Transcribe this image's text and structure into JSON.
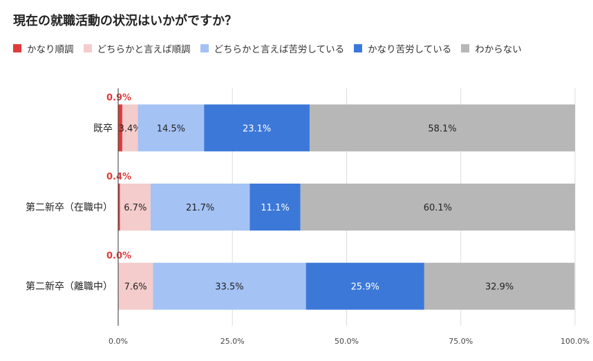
{
  "chart_data": {
    "type": "bar",
    "orientation": "horizontal",
    "stacked": true,
    "normalized": true,
    "title": "現在の就職活動の状況はいかがですか？",
    "categories": [
      "既卒",
      "第二新卒（在職中）",
      "第二新卒（離職中）"
    ],
    "series": [
      {
        "name": "かなり順調",
        "color": "#e03b3b",
        "values": [
          0.9,
          0.4,
          0.0
        ],
        "labels": [
          "0.9%",
          "0.4%",
          "0.0%"
        ],
        "label_color": "#e03b3b"
      },
      {
        "name": "どちらかと言えば順調",
        "color": "#f4cccc",
        "values": [
          3.4,
          6.7,
          7.6
        ],
        "labels": [
          "3.4%",
          "6.7%",
          "7.6%"
        ],
        "label_color": "#222222"
      },
      {
        "name": "どちらかと言えば苦労している",
        "color": "#a4c2f4",
        "values": [
          14.5,
          21.7,
          33.5
        ],
        "labels": [
          "14.5%",
          "21.7%",
          "33.5%"
        ],
        "label_color": "#222222"
      },
      {
        "name": "かなり苦労している",
        "color": "#3c78d8",
        "values": [
          23.1,
          11.1,
          25.9
        ],
        "labels": [
          "23.1%",
          "11.1%",
          "25.9%"
        ],
        "label_color": "#ffffff"
      },
      {
        "name": "わからない",
        "color": "#b7b7b7",
        "values": [
          58.1,
          60.1,
          32.9
        ],
        "labels": [
          "58.1%",
          "60.1%",
          "32.9%"
        ],
        "label_color": "#222222"
      }
    ],
    "xlim": [
      0,
      100
    ],
    "xticks": [
      0,
      25,
      50,
      75,
      100
    ],
    "xtick_labels": [
      "0.0%",
      "25.0%",
      "50.0%",
      "75.0%",
      "100.0%"
    ],
    "grid": true,
    "legend_position": "top"
  }
}
